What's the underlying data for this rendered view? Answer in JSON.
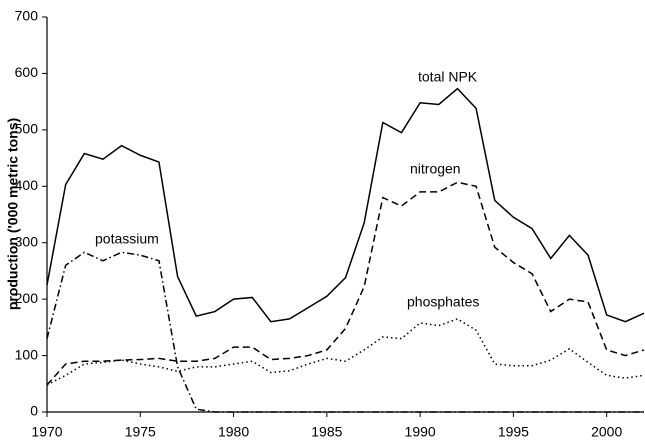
{
  "chart_data": {
    "type": "line",
    "y_label": "production ('000 metric tons)",
    "x": [
      1970,
      1971,
      1972,
      1973,
      1974,
      1975,
      1976,
      1977,
      1978,
      1979,
      1980,
      1981,
      1982,
      1983,
      1984,
      1985,
      1986,
      1987,
      1988,
      1989,
      1990,
      1991,
      1992,
      1993,
      1994,
      1995,
      1996,
      1997,
      1998,
      1999,
      2000,
      2001,
      2002
    ],
    "series": [
      {
        "name": "total NPK",
        "color": "#000000",
        "style": "solid",
        "values": [
          225,
          403,
          458,
          448,
          472,
          455,
          443,
          240,
          170,
          178,
          200,
          203,
          160,
          165,
          185,
          205,
          238,
          335,
          513,
          495,
          548,
          545,
          573,
          538,
          375,
          345,
          325,
          272,
          313,
          278,
          172,
          160,
          175
        ]
      },
      {
        "name": "nitrogen",
        "color": "#000000",
        "style": "dashed",
        "values": [
          48,
          85,
          90,
          90,
          92,
          93,
          95,
          90,
          90,
          95,
          115,
          115,
          93,
          95,
          100,
          110,
          148,
          222,
          380,
          365,
          390,
          390,
          407,
          400,
          292,
          265,
          245,
          178,
          200,
          195,
          110,
          100,
          110
        ]
      },
      {
        "name": "phosphates",
        "color": "#000000",
        "style": "dotted",
        "values": [
          48,
          65,
          85,
          88,
          92,
          85,
          80,
          72,
          80,
          80,
          85,
          90,
          70,
          73,
          85,
          95,
          90,
          110,
          133,
          130,
          158,
          153,
          165,
          145,
          85,
          82,
          82,
          92,
          112,
          88,
          65,
          60,
          65
        ]
      },
      {
        "name": "potassium",
        "color": "#000000",
        "style": "dashdot",
        "values": [
          130,
          260,
          283,
          268,
          283,
          278,
          268,
          80,
          5,
          0,
          0,
          0,
          0,
          0,
          0,
          0,
          0,
          0,
          0,
          0,
          0,
          0,
          0,
          0,
          0,
          0,
          0,
          0,
          0,
          0,
          0,
          0,
          0
        ]
      }
    ],
    "xlim": [
      1970,
      2002
    ],
    "xticks": [
      1970,
      1975,
      1980,
      1985,
      1990,
      1995,
      2000
    ],
    "ylim": [
      0,
      700
    ],
    "yticks": [
      0,
      100,
      200,
      300,
      400,
      500,
      600,
      700
    ],
    "grid": false
  }
}
